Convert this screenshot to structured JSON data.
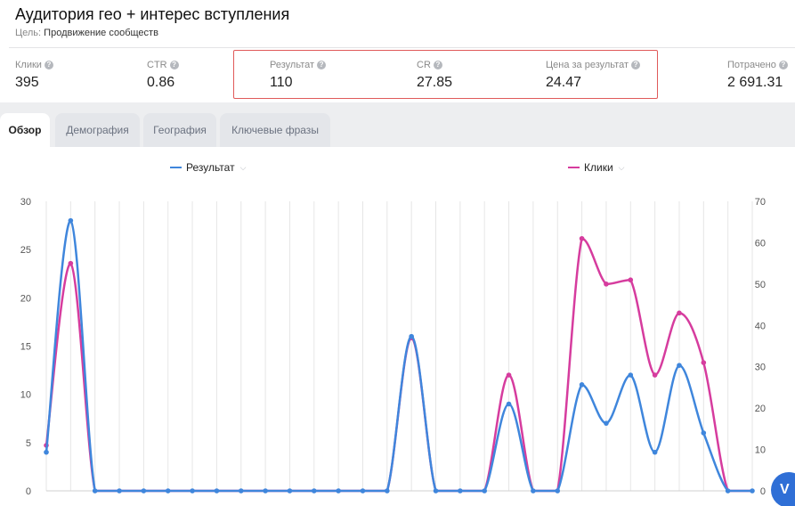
{
  "header": {
    "title": "Аудитория гео + интерес вступления",
    "goal_label": "Цель:",
    "goal_value": "Продвижение сообществ"
  },
  "stats": [
    {
      "label": "Клики",
      "value": "395"
    },
    {
      "label": "CTR",
      "value": "0.86"
    },
    {
      "label": "Результат",
      "value": "110"
    },
    {
      "label": "CR",
      "value": "27.85"
    },
    {
      "label": "Цена за результат",
      "value": "24.47"
    },
    {
      "label": "Потрачено",
      "value": "2 691.31"
    }
  ],
  "tabs": [
    {
      "label": "Обзор",
      "active": true
    },
    {
      "label": "Демография",
      "active": false
    },
    {
      "label": "География",
      "active": false
    },
    {
      "label": "Ключевые фразы",
      "active": false
    }
  ],
  "colors": {
    "result": "#3f86dc",
    "clicks": "#d63c9e",
    "highlight": "#e05a5a",
    "grid": "#e6e6e6"
  },
  "icons": {
    "help": "question-circle-icon",
    "chevron": "chevron-down-icon",
    "floating": "viber-icon"
  },
  "floating_button": {
    "glyph": "V"
  },
  "chart_data": {
    "type": "line",
    "title": "",
    "xlabel": "",
    "ylabel": "",
    "x": [
      0,
      1,
      2,
      3,
      4,
      5,
      6,
      7,
      8,
      9,
      10,
      11,
      12,
      13,
      14,
      15,
      16,
      17,
      18,
      19,
      20,
      21,
      22,
      23,
      24,
      25,
      26,
      27,
      28,
      29
    ],
    "series": [
      {
        "name": "Результат",
        "axis": "left",
        "color": "#3f86dc",
        "values": [
          4,
          28,
          0,
          0,
          0,
          0,
          0,
          0,
          0,
          0,
          0,
          0,
          0,
          0,
          0,
          16,
          0,
          0,
          0,
          9,
          0,
          0,
          11,
          7,
          12,
          4,
          13,
          6,
          0,
          0
        ]
      },
      {
        "name": "Клики",
        "axis": "right",
        "color": "#d63c9e",
        "values": [
          11,
          55,
          0,
          0,
          0,
          0,
          0,
          0,
          0,
          0,
          0,
          0,
          0,
          0,
          0,
          37,
          0,
          0,
          0,
          28,
          0,
          0,
          61,
          50,
          51,
          28,
          43,
          31,
          0,
          0
        ]
      }
    ],
    "y_left": {
      "range": [
        0,
        30
      ],
      "ticks": [
        "0",
        "5",
        "10",
        "15",
        "20",
        "25",
        "30"
      ]
    },
    "y_right": {
      "range": [
        0,
        70
      ],
      "ticks": [
        "0",
        "10",
        "20",
        "30",
        "40",
        "50",
        "60",
        "70"
      ]
    },
    "grid": true,
    "legend_position": "top"
  }
}
